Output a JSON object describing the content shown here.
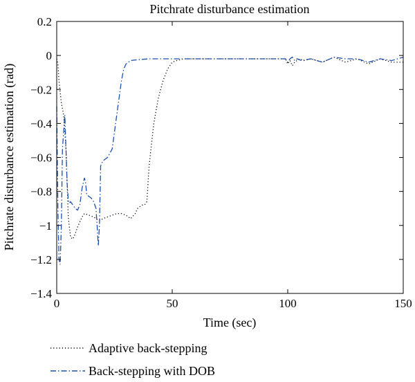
{
  "chart_data": {
    "type": "line",
    "title": "Pitchrate disturbance estimation",
    "xlabel": "Time (sec)",
    "ylabel": "Pitchrate disturbance estimation (rad)",
    "xlim": [
      0,
      150
    ],
    "ylim": [
      -1.4,
      0.2
    ],
    "xticks": [
      0,
      50,
      100,
      150
    ],
    "yticks": [
      -1.4,
      -1.2,
      -1,
      -0.8,
      -0.6,
      -0.4,
      -0.2,
      0,
      0.2
    ],
    "xtick_labels": [
      "0",
      "50",
      "100",
      "150"
    ],
    "ytick_labels": [
      "−1.4",
      "−1.2",
      "−1",
      "−0.8",
      "−0.6",
      "−0.4",
      "−0.2",
      "0",
      "0.2"
    ],
    "grid": false,
    "legend_position": "bottom-outside",
    "series": [
      {
        "name": "Adaptive back-stepping",
        "color": "#000000",
        "dash": "dotted",
        "x": [
          0,
          0.5,
          1,
          2,
          3,
          4,
          5,
          6,
          7,
          8,
          9,
          10,
          11,
          12,
          14,
          16,
          18,
          19,
          20,
          22,
          24,
          26,
          28,
          30,
          32,
          34,
          35,
          36,
          37,
          38,
          39,
          40,
          42,
          44,
          46,
          48,
          50,
          52,
          55,
          60,
          80,
          99,
          100,
          101,
          102,
          103,
          105,
          107,
          110,
          115,
          120,
          125,
          130,
          135,
          140,
          145,
          150
        ],
        "y": [
          -0.02,
          -0.05,
          -0.15,
          -0.28,
          -0.35,
          -0.55,
          -0.95,
          -1.07,
          -1.08,
          -1.05,
          -1.01,
          -0.98,
          -0.95,
          -0.93,
          -0.94,
          -0.95,
          -0.97,
          -0.97,
          -0.96,
          -0.95,
          -0.94,
          -0.93,
          -0.93,
          -0.94,
          -0.96,
          -0.93,
          -0.9,
          -0.89,
          -0.88,
          -0.88,
          -0.86,
          -0.65,
          -0.4,
          -0.25,
          -0.15,
          -0.08,
          -0.04,
          -0.03,
          -0.02,
          -0.02,
          -0.02,
          -0.02,
          -0.05,
          -0.03,
          -0.06,
          -0.04,
          -0.02,
          -0.03,
          -0.02,
          -0.04,
          -0.01,
          -0.04,
          -0.02,
          -0.05,
          -0.02,
          -0.04,
          -0.04
        ]
      },
      {
        "name": "Back-stepping with DOB",
        "color": "#1f4fa8",
        "dash": "dashdot",
        "x": [
          0,
          0.5,
          1,
          1.5,
          2,
          2.5,
          3,
          3.5,
          4,
          4.5,
          5,
          5.5,
          6,
          7,
          8,
          9,
          10,
          11,
          12,
          12.5,
          13,
          14,
          15,
          16,
          17,
          17.5,
          18,
          18.5,
          19,
          20,
          22,
          24,
          25,
          26,
          27,
          28,
          29,
          30,
          32,
          35,
          40,
          50,
          60,
          80,
          99,
          100,
          101,
          102,
          103,
          104,
          106,
          110,
          115,
          120,
          125,
          130,
          135,
          140,
          145,
          150
        ],
        "y": [
          -0.3,
          -0.9,
          -1.2,
          -1.23,
          -1.0,
          -0.55,
          -0.45,
          -0.35,
          -0.55,
          -0.75,
          -0.85,
          -0.87,
          -0.86,
          -0.88,
          -0.9,
          -0.91,
          -0.88,
          -0.78,
          -0.72,
          -0.75,
          -0.82,
          -0.83,
          -0.84,
          -0.86,
          -0.9,
          -1.0,
          -1.12,
          -1.0,
          -0.65,
          -0.62,
          -0.6,
          -0.55,
          -0.45,
          -0.35,
          -0.25,
          -0.15,
          -0.08,
          -0.05,
          -0.03,
          -0.025,
          -0.02,
          -0.02,
          -0.02,
          -0.02,
          -0.02,
          -0.04,
          -0.02,
          -0.01,
          -0.03,
          -0.02,
          -0.03,
          -0.02,
          -0.04,
          -0.01,
          -0.02,
          -0.02,
          -0.04,
          -0.02,
          -0.03,
          -0.01
        ]
      }
    ]
  }
}
